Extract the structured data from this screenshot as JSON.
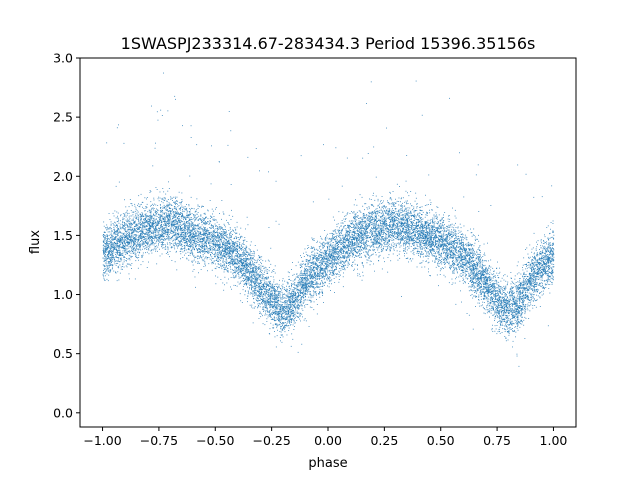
{
  "chart_data": {
    "type": "scatter",
    "title": "1SWASPJ233314.67-283434.3 Period 15396.35156s",
    "xlabel": "phase",
    "ylabel": "flux",
    "xlim": [
      -1.1,
      1.1
    ],
    "ylim": [
      -0.12,
      3.0
    ],
    "x_ticks": [
      -1.0,
      -0.75,
      -0.5,
      -0.25,
      0.0,
      0.25,
      0.5,
      0.75,
      1.0
    ],
    "x_tick_labels": [
      "−1.00",
      "−0.75",
      "−0.50",
      "−0.25",
      "0.00",
      "0.25",
      "0.50",
      "0.75",
      "1.00"
    ],
    "y_ticks": [
      0.0,
      0.5,
      1.0,
      1.5,
      2.0,
      2.5,
      3.0
    ],
    "y_tick_labels": [
      "0.0",
      "0.5",
      "1.0",
      "1.5",
      "2.0",
      "2.5",
      "3.0"
    ],
    "grid": false,
    "marker_color": "#1f77b4",
    "series": [
      {
        "x": [
          -1.0,
          -0.9,
          -0.8,
          -0.7,
          -0.6,
          -0.5,
          -0.4,
          -0.3,
          -0.25,
          -0.2,
          -0.15,
          -0.1,
          0.0,
          0.1,
          0.2,
          0.3,
          0.4,
          0.5,
          0.6,
          0.7,
          0.75,
          0.8,
          0.85,
          0.9,
          1.0
        ],
        "y": [
          1.35,
          1.47,
          1.56,
          1.6,
          1.52,
          1.45,
          1.31,
          1.08,
          0.95,
          0.86,
          0.95,
          1.12,
          1.3,
          1.46,
          1.55,
          1.6,
          1.53,
          1.45,
          1.32,
          1.1,
          0.95,
          0.86,
          0.95,
          1.13,
          1.35
        ]
      }
    ]
  }
}
